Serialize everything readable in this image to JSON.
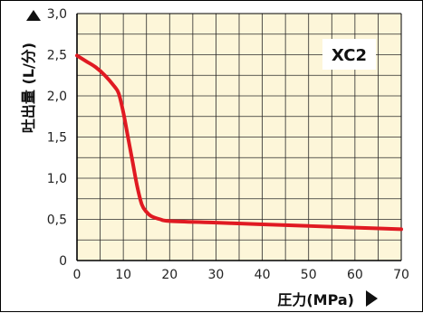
{
  "chart_data": {
    "type": "line",
    "title": "",
    "xlabel": "圧力(MPa)",
    "ylabel": "吐出量 (L/分)",
    "annotation": "XC2",
    "xlim": [
      0,
      70
    ],
    "ylim": [
      0,
      3.0
    ],
    "x_ticks": [
      "0",
      "10",
      "20",
      "30",
      "40",
      "50",
      "60",
      "70"
    ],
    "y_ticks": [
      "0",
      "0,5",
      "1,0",
      "1,5",
      "2,0",
      "2,5",
      "3,0"
    ],
    "grid": true,
    "colors": {
      "series": "#e01a22",
      "plot_bg": "#fdf6d9",
      "grid": "#2a2a2a"
    },
    "series": [
      {
        "x": [
          0,
          2,
          4,
          6,
          8,
          9,
          10,
          11,
          12,
          13,
          14,
          15,
          16,
          18,
          20,
          30,
          40,
          50,
          60,
          70
        ],
        "y": [
          2.49,
          2.42,
          2.35,
          2.25,
          2.12,
          2.03,
          1.8,
          1.5,
          1.2,
          0.9,
          0.68,
          0.59,
          0.54,
          0.5,
          0.48,
          0.46,
          0.44,
          0.42,
          0.4,
          0.38
        ]
      }
    ]
  }
}
